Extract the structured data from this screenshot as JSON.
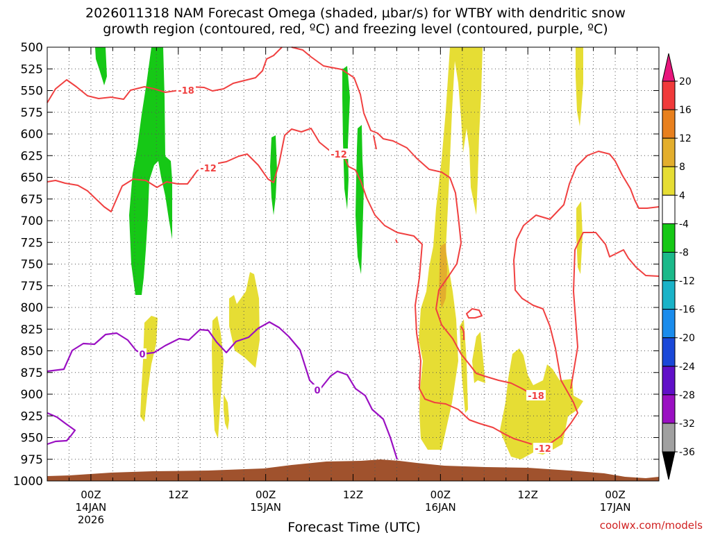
{
  "chart_data": {
    "type": "heatmap",
    "title_lines": [
      "2026011318 NAM Forecast Omega (shaded, µbar/s) for WTBY with dendritic snow",
      "growth region (contoured, red, ºC) and freezing level (contoured, purple, ºC)"
    ],
    "xlabel": "Forecast Time (UTC)",
    "credit": "coolwx.com/models",
    "y_ticks": [
      500,
      525,
      550,
      575,
      600,
      625,
      650,
      675,
      700,
      725,
      750,
      775,
      800,
      825,
      850,
      875,
      900,
      925,
      950,
      975,
      1000
    ],
    "y_labels": [
      "500",
      "525",
      "550",
      "575",
      "600",
      "625",
      "650",
      "675",
      "700",
      "725",
      "750",
      "775",
      "800",
      "825",
      "850",
      "875",
      "900",
      "925",
      "950",
      "975",
      "1000"
    ],
    "ylim_hpa": [
      500,
      1000
    ],
    "xlim_hours": [
      -6,
      78
    ],
    "x_ticks": [
      {
        "hour": 0,
        "label": "00Z",
        "sub1": "14JAN",
        "sub2": "2026"
      },
      {
        "hour": 12,
        "label": "12Z",
        "sub1": "",
        "sub2": ""
      },
      {
        "hour": 24,
        "label": "00Z",
        "sub1": "15JAN",
        "sub2": ""
      },
      {
        "hour": 36,
        "label": "12Z",
        "sub1": "",
        "sub2": ""
      },
      {
        "hour": 48,
        "label": "00Z",
        "sub1": "16JAN",
        "sub2": ""
      },
      {
        "hour": 60,
        "label": "12Z",
        "sub1": "",
        "sub2": ""
      },
      {
        "hour": 72,
        "label": "00Z",
        "sub1": "17JAN",
        "sub2": ""
      }
    ],
    "x_minor_step_hours": 3,
    "colorbar": {
      "labels": [
        "20",
        "16",
        "12",
        "8",
        "4",
        "-4",
        "-8",
        "-12",
        "-16",
        "-20",
        "-24",
        "-28",
        "-32",
        "-36"
      ],
      "colors": [
        "#e8157c",
        "#f03a3a",
        "#e8801e",
        "#e3ae2d",
        "#e6dd34",
        "#ffffff",
        "#16c816",
        "#1bb98a",
        "#1ab3c8",
        "#1a8cec",
        "#1a48d8",
        "#6010c8",
        "#9a10c2",
        "#a0a0a0",
        "#000000"
      ]
    },
    "contour_labels": {
      "dgz_colder": "-18",
      "dgz_warmer": "-12",
      "freezing": "0"
    },
    "terrain_color": "#a0522d"
  }
}
